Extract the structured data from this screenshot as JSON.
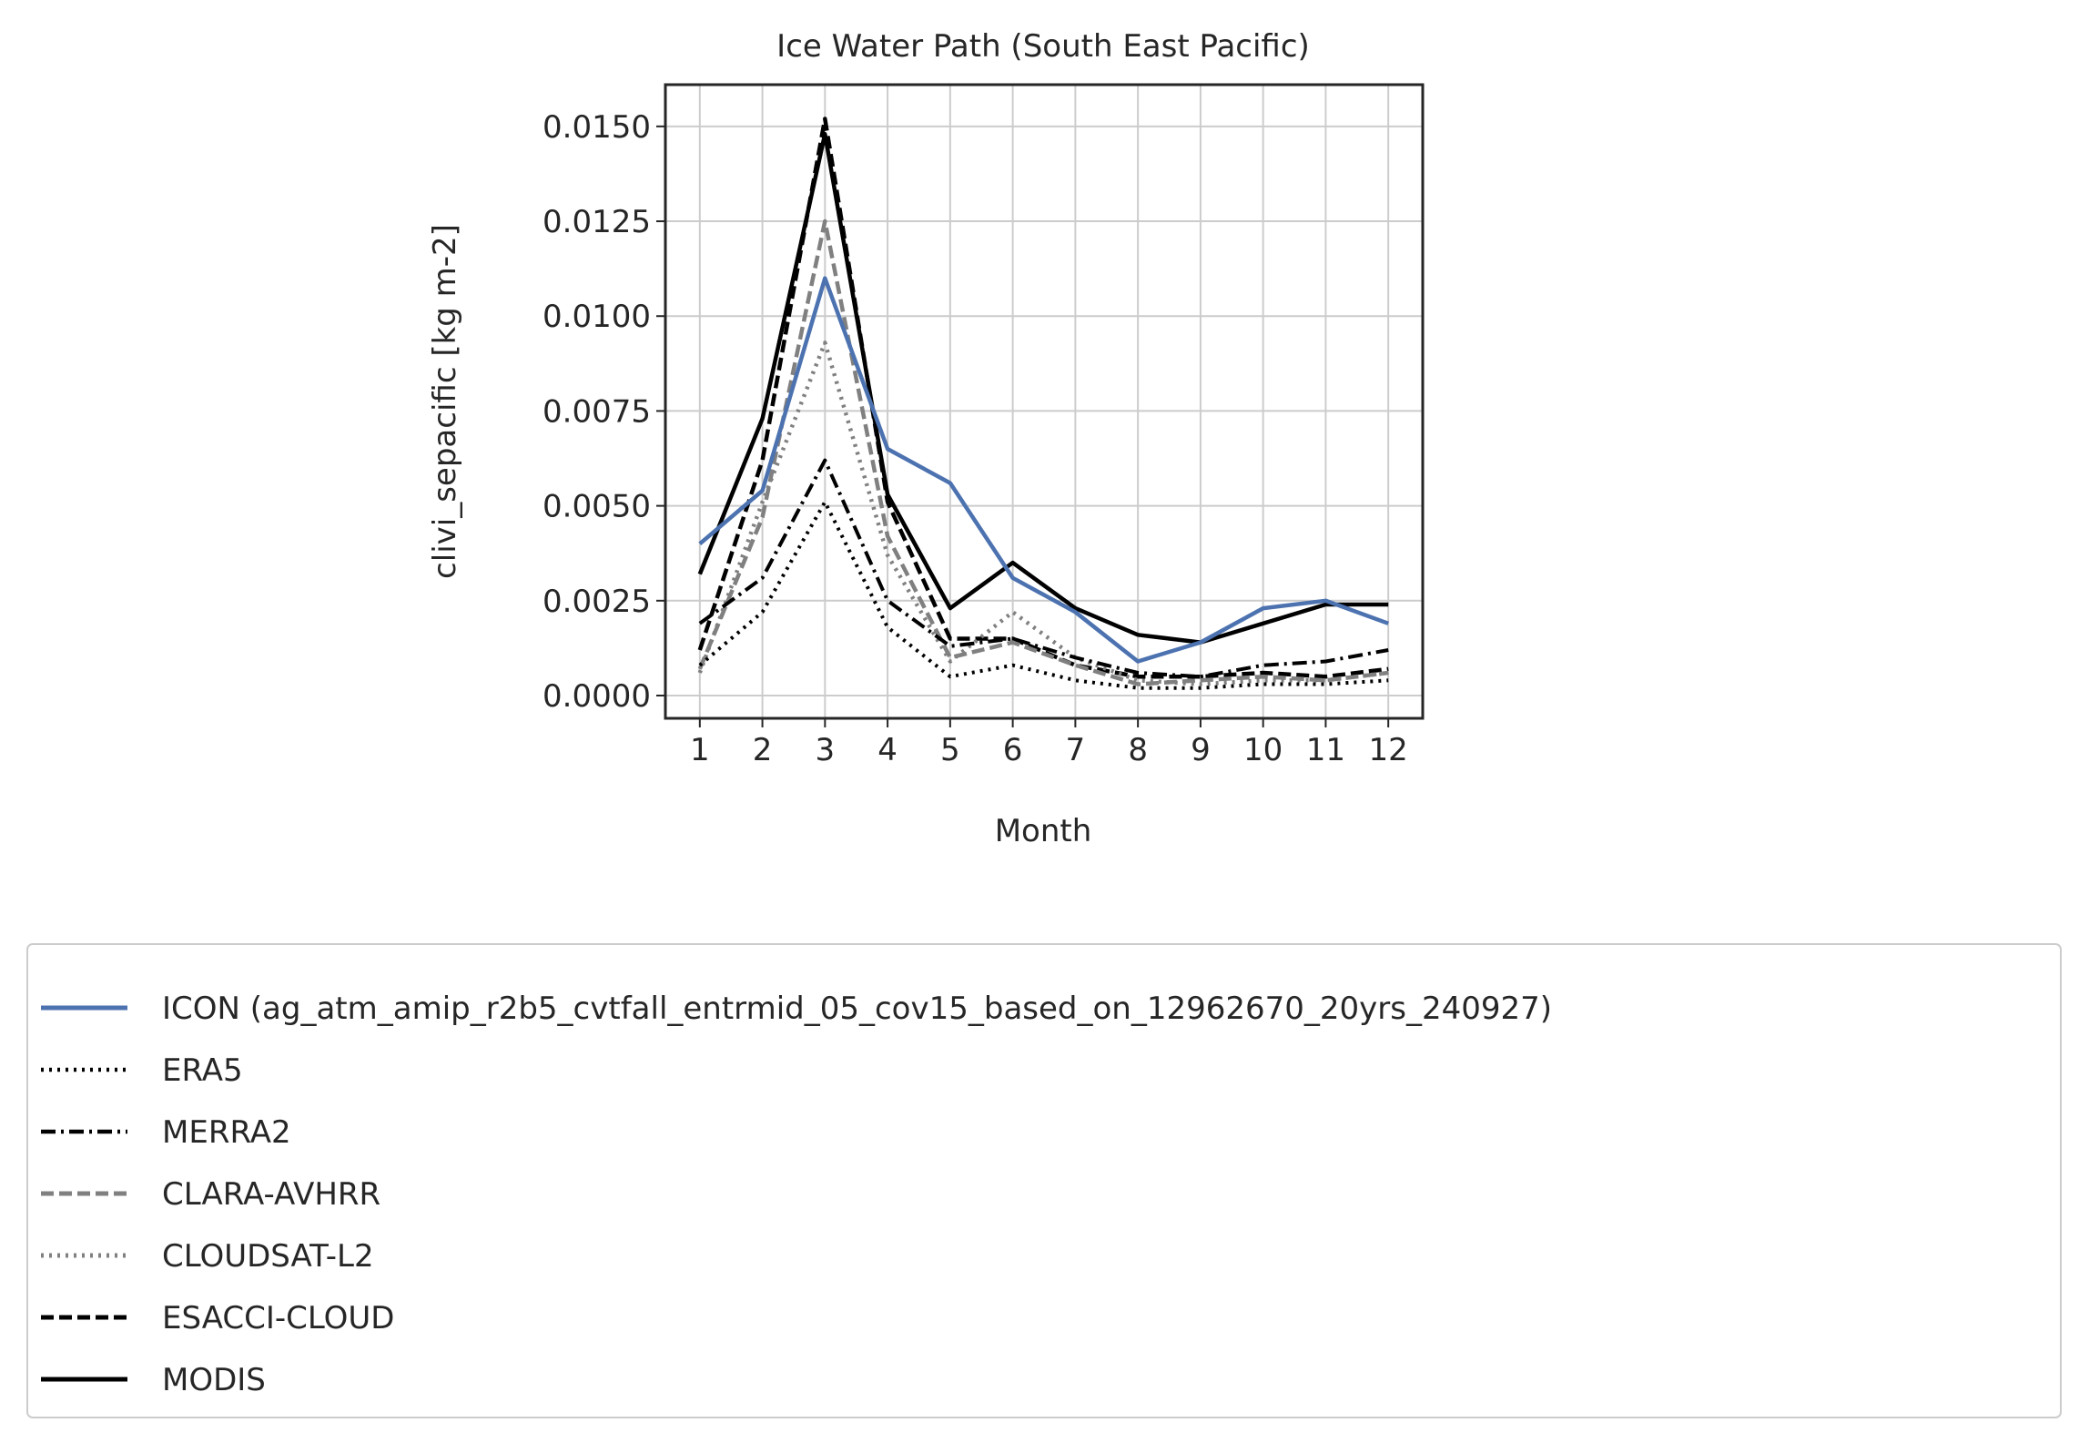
{
  "chart_data": {
    "type": "line",
    "title": "Ice Water Path (South East Pacific)",
    "xlabel": "Month",
    "ylabel": "clivi_sepacific [kg m-2]",
    "x": [
      1,
      2,
      3,
      4,
      5,
      6,
      7,
      8,
      9,
      10,
      11,
      12
    ],
    "xticks": [
      "1",
      "2",
      "3",
      "4",
      "5",
      "6",
      "7",
      "8",
      "9",
      "10",
      "11",
      "12"
    ],
    "yticks": [
      "0.0000",
      "0.0025",
      "0.0050",
      "0.0075",
      "0.0100",
      "0.0125",
      "0.0150"
    ],
    "xlim": [
      0.45,
      12.55
    ],
    "ylim": [
      -0.0006,
      0.0161
    ],
    "grid": true,
    "legend_position": "below",
    "series": [
      {
        "name": "ICON (ag_atm_amip_r2b5_cvtfall_entrmid_05_cov15_based_on_12962670_20yrs_240927)",
        "color": "#4c72b0",
        "style": "solid",
        "width": 3,
        "values": [
          0.004,
          0.0054,
          0.011,
          0.0065,
          0.0056,
          0.0031,
          0.0022,
          0.0009,
          0.0014,
          0.0023,
          0.0025,
          0.0019
        ]
      },
      {
        "name": "ERA5",
        "color": "#000000",
        "style": "dotted",
        "width": 2.5,
        "values": [
          0.0008,
          0.0022,
          0.0051,
          0.0018,
          0.0005,
          0.0008,
          0.0004,
          0.0002,
          0.0002,
          0.0003,
          0.0003,
          0.0004
        ]
      },
      {
        "name": "MERRA2",
        "color": "#000000",
        "style": "dashdot",
        "width": 2.5,
        "values": [
          0.0019,
          0.0031,
          0.0062,
          0.0025,
          0.0013,
          0.0015,
          0.001,
          0.0006,
          0.0005,
          0.0008,
          0.0009,
          0.0012
        ]
      },
      {
        "name": "CLARA-AVHRR",
        "color": "#808080",
        "style": "dashed",
        "width": 3,
        "values": [
          0.0007,
          0.0047,
          0.0125,
          0.0042,
          0.001,
          0.0014,
          0.0008,
          0.0003,
          0.0004,
          0.0005,
          0.0004,
          0.0006
        ]
      },
      {
        "name": "CLOUDSAT-L2",
        "color": "#808080",
        "style": "dotted",
        "width": 3,
        "values": [
          0.0006,
          0.0051,
          0.0093,
          0.0037,
          0.0009,
          0.0022,
          0.001,
          0.0004,
          0.0003,
          0.0004,
          0.0004,
          0.0006
        ]
      },
      {
        "name": "ESACCI-CLOUD",
        "color": "#000000",
        "style": "dashed",
        "width": 3,
        "values": [
          0.0012,
          0.0062,
          0.0152,
          0.0051,
          0.0015,
          0.0015,
          0.0008,
          0.0005,
          0.0005,
          0.0006,
          0.0005,
          0.0007
        ]
      },
      {
        "name": "MODIS",
        "color": "#000000",
        "style": "solid",
        "width": 3,
        "values": [
          0.0032,
          0.0073,
          0.0148,
          0.0053,
          0.0023,
          0.0035,
          0.0023,
          0.0016,
          0.0014,
          0.0019,
          0.0024,
          0.0024
        ]
      }
    ]
  }
}
